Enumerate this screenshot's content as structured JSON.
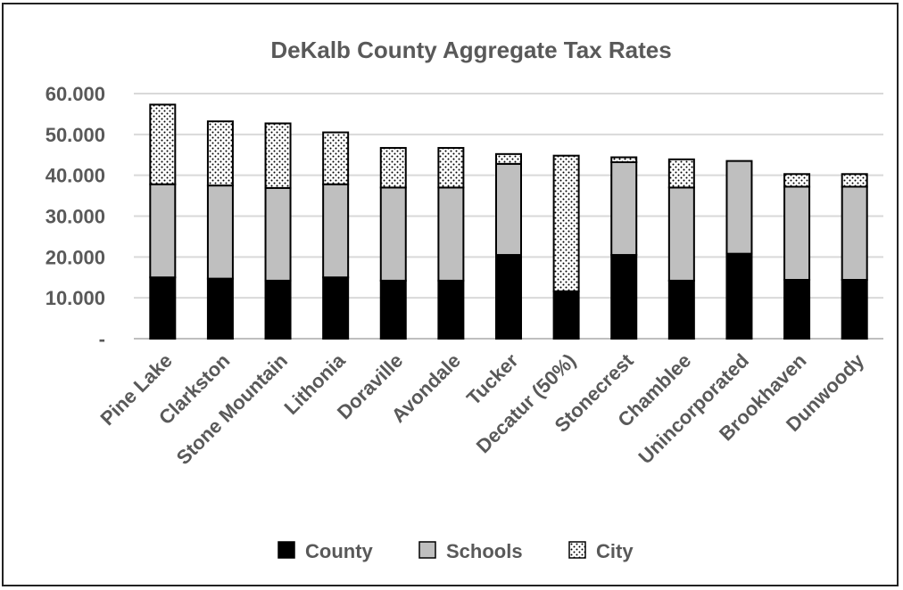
{
  "chart_data": {
    "type": "bar",
    "stacked": true,
    "title": "DeKalb County Aggregate Tax Rates",
    "xlabel": "",
    "ylabel": "",
    "ylim": [
      0,
      60
    ],
    "yticks": [
      0,
      10,
      20,
      30,
      40,
      50,
      60
    ],
    "ytick_labels": [
      "-",
      "10.000",
      "20.000",
      "30.000",
      "40.000",
      "50.000",
      "60.000"
    ],
    "grid": true,
    "legend_position": "bottom",
    "categories": [
      "Pine Lake",
      "Clarkston",
      "Stone Mountain",
      "Lithonia",
      "Doraville",
      "Avondale",
      "Tucker",
      "Decatur (50%)",
      "Stonecrest",
      "Chamblee",
      "Unincorporated",
      "Brookhaven",
      "Dunwoody"
    ],
    "series": [
      {
        "name": "County",
        "color": "#000000",
        "pattern": "solid",
        "values": [
          15.0,
          14.7,
          14.2,
          15.0,
          14.2,
          14.2,
          20.5,
          11.6,
          20.5,
          14.2,
          20.8,
          14.4,
          14.4
        ]
      },
      {
        "name": "Schools",
        "color": "#bfbfbf",
        "pattern": "solid",
        "values": [
          22.8,
          22.8,
          22.7,
          22.8,
          22.8,
          22.8,
          22.3,
          0,
          22.7,
          22.8,
          22.7,
          22.8,
          22.8
        ]
      },
      {
        "name": "City",
        "color": "#ffffff",
        "pattern": "dots",
        "values": [
          19.5,
          15.7,
          15.8,
          12.7,
          9.7,
          9.7,
          2.4,
          33.2,
          1.2,
          6.9,
          0,
          3.1,
          3.1
        ]
      }
    ]
  }
}
